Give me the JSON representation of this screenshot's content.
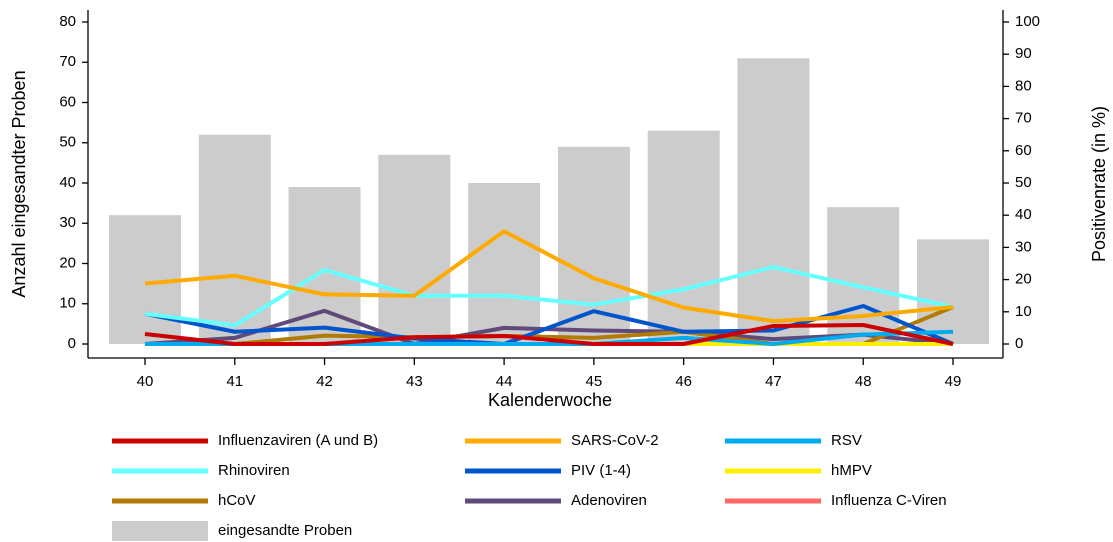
{
  "chart_data": {
    "type": "bar-line",
    "x_label": "Kalenderwoche",
    "y_label": "Anzahl eingesandter Proben",
    "y2_label": "Positivenrate (in %)",
    "categories": [
      "40",
      "41",
      "42",
      "43",
      "44",
      "45",
      "46",
      "47",
      "48",
      "49"
    ],
    "ylim": [
      0,
      80
    ],
    "yticks": [
      0,
      10,
      20,
      30,
      40,
      50,
      60,
      70,
      80
    ],
    "y2lim": [
      0,
      100
    ],
    "y2ticks": [
      0,
      10,
      20,
      30,
      40,
      50,
      60,
      70,
      80,
      90,
      100
    ],
    "series": [
      {
        "name": "Influenzaviren (A und B)",
        "color": "#cc0000",
        "axis": "y2",
        "values": [
          3.1,
          0,
          0,
          2.1,
          2.5,
          0,
          0,
          5.6,
          5.9,
          0
        ]
      },
      {
        "name": "SARS-CoV-2",
        "color": "#ffaa00",
        "axis": "y2",
        "values": [
          18.8,
          21.2,
          15.4,
          15,
          35,
          20.4,
          11.3,
          7.1,
          8.7,
          11.5
        ]
      },
      {
        "name": "RSV",
        "color": "#00aaee",
        "axis": "y2",
        "values": [
          0,
          0,
          0,
          0,
          0,
          0,
          1.9,
          0,
          2.9,
          3.8
        ]
      },
      {
        "name": "Rhinoviren",
        "color": "#66ffff",
        "axis": "y2",
        "values": [
          9.4,
          5.8,
          23,
          15,
          15,
          12.2,
          17,
          23.9,
          17.6,
          11.5
        ]
      },
      {
        "name": "PIV (1-4)",
        "color": "#0055cc",
        "axis": "y2",
        "values": [
          9.4,
          3.8,
          5.1,
          1.7,
          0,
          10.2,
          3.8,
          4.2,
          11.8,
          0
        ]
      },
      {
        "name": "hMPV",
        "color": "#ffee00",
        "axis": "y2",
        "values": [
          0,
          0,
          0,
          0,
          0,
          0,
          0,
          0,
          0,
          0
        ]
      },
      {
        "name": "hCoV",
        "color": "#b07b00",
        "axis": "y2",
        "values": [
          0,
          0,
          2.6,
          2.1,
          2.5,
          1.9,
          3.8,
          0,
          0,
          11.5
        ]
      },
      {
        "name": "Adenoviren",
        "color": "#604a7b",
        "axis": "y2",
        "values": [
          0,
          1.9,
          10.3,
          0,
          5,
          4.2,
          3.8,
          1.5,
          2.9,
          0
        ]
      },
      {
        "name": "Influenza C-Viren",
        "color": "#ff6666",
        "axis": "y2",
        "values": [
          0,
          0,
          0,
          0,
          0,
          0,
          0,
          0,
          0,
          0
        ]
      }
    ],
    "bars": {
      "name": "eingesandte Proben",
      "color": "#cccccc",
      "values": [
        32,
        52,
        39,
        47,
        40,
        49,
        53,
        71,
        34,
        26
      ]
    }
  }
}
